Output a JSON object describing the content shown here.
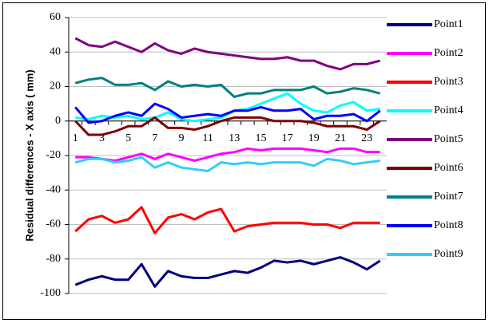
{
  "chart_data": {
    "type": "line",
    "ylabel": "Residual differences - X axis ( mm)",
    "categories": [
      "1",
      null,
      "3",
      null,
      "5",
      null,
      "7",
      null,
      "9",
      null,
      "11",
      null,
      "13",
      null,
      "15",
      null,
      "17",
      null,
      "19",
      null,
      "21",
      null,
      "23",
      null
    ],
    "ylim": [
      -100,
      60
    ],
    "yticks": [
      -100,
      -80,
      -60,
      -40,
      -20,
      0,
      20,
      40,
      60
    ],
    "grid": true,
    "legend": "right",
    "series": [
      {
        "name": "Point1",
        "color": "#000080",
        "values": [
          -95,
          -92,
          -90,
          -92,
          -92,
          -83,
          -96,
          -87,
          -90,
          -91,
          -91,
          -89,
          -87,
          -88,
          -85,
          -81,
          -82,
          -81,
          -83,
          -81,
          -79,
          -82,
          -86,
          -81
        ]
      },
      {
        "name": "Point2",
        "color": "#ff00ff",
        "values": [
          -21,
          -21,
          -22,
          -23,
          -21,
          -19,
          -22,
          -19,
          -21,
          -23,
          -21,
          -19,
          -18,
          -16,
          -17,
          -16,
          -16,
          -16,
          -17,
          -18,
          -16,
          -16,
          -18,
          -18
        ]
      },
      {
        "name": "Point3",
        "color": "#ff0000",
        "values": [
          -64,
          -57,
          -55,
          -59,
          -57,
          -50,
          -65,
          -56,
          -54,
          -57,
          -53,
          -51,
          -64,
          -61,
          -60,
          -59,
          -59,
          -59,
          -60,
          -60,
          -62,
          -59,
          -59,
          -59
        ]
      },
      {
        "name": "Point4",
        "color": "#00ffff",
        "values": [
          2,
          1,
          3,
          2,
          3,
          1,
          2,
          5,
          1,
          0,
          1,
          2,
          6,
          7,
          10,
          13,
          16,
          10,
          6,
          5,
          9,
          11,
          6,
          7
        ]
      },
      {
        "name": "Point5",
        "color": "#800080",
        "values": [
          48,
          44,
          43,
          46,
          43,
          40,
          45,
          41,
          39,
          42,
          40,
          39,
          38,
          37,
          36,
          36,
          37,
          35,
          35,
          32,
          30,
          33,
          33,
          35
        ]
      },
      {
        "name": "Point6",
        "color": "#800000",
        "values": [
          0,
          -8,
          -8,
          -6,
          -3,
          -3,
          2,
          -4,
          -4,
          -5,
          -3,
          0,
          2,
          2,
          2,
          0,
          0,
          0,
          -1,
          -3,
          -3,
          -3,
          -5,
          0
        ]
      },
      {
        "name": "Point7",
        "color": "#008080",
        "values": [
          22,
          24,
          25,
          21,
          21,
          22,
          18,
          23,
          20,
          21,
          20,
          21,
          14,
          16,
          16,
          18,
          18,
          18,
          20,
          16,
          17,
          19,
          18,
          16
        ]
      },
      {
        "name": "Point8",
        "color": "#0000ff",
        "values": [
          8,
          -1,
          0,
          3,
          5,
          3,
          10,
          7,
          2,
          3,
          4,
          3,
          6,
          6,
          8,
          6,
          6,
          7,
          1,
          3,
          3,
          4,
          0,
          6
        ]
      },
      {
        "name": "Point9",
        "color": "#33ccff",
        "values": [
          -24,
          -22,
          -22,
          -24,
          -23,
          -21,
          -27,
          -24,
          -27,
          -28,
          -29,
          -24,
          -25,
          -24,
          -25,
          -24,
          -24,
          -24,
          -26,
          -22,
          -23,
          -25,
          -24,
          -23
        ]
      }
    ]
  }
}
